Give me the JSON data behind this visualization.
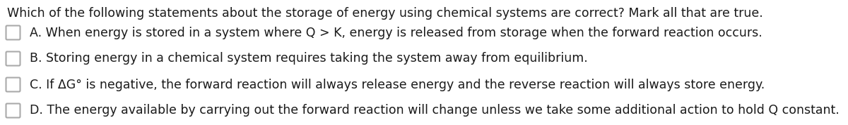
{
  "background_color": "#ffffff",
  "title_text": "Which of the following statements about the storage of energy using chemical systems are correct? Mark all that are true.",
  "options": [
    "A. When energy is stored in a system where Q > K, energy is released from storage when the forward reaction occurs.",
    "B. Storing energy in a chemical system requires taking the system away from equilibrium.",
    "C. If ΔG° is negative, the forward reaction will always release energy and the reverse reaction will always store energy.",
    "D. The energy available by carrying out the forward reaction will change unless we take some additional action to hold Q constant."
  ],
  "font_size_title": 12.5,
  "font_size_options": 12.5,
  "text_color": "#1a1a1a",
  "checkbox_color": "#aaaaaa",
  "checkbox_linewidth": 1.5,
  "fig_width": 12.0,
  "fig_height": 1.78,
  "dpi": 100
}
